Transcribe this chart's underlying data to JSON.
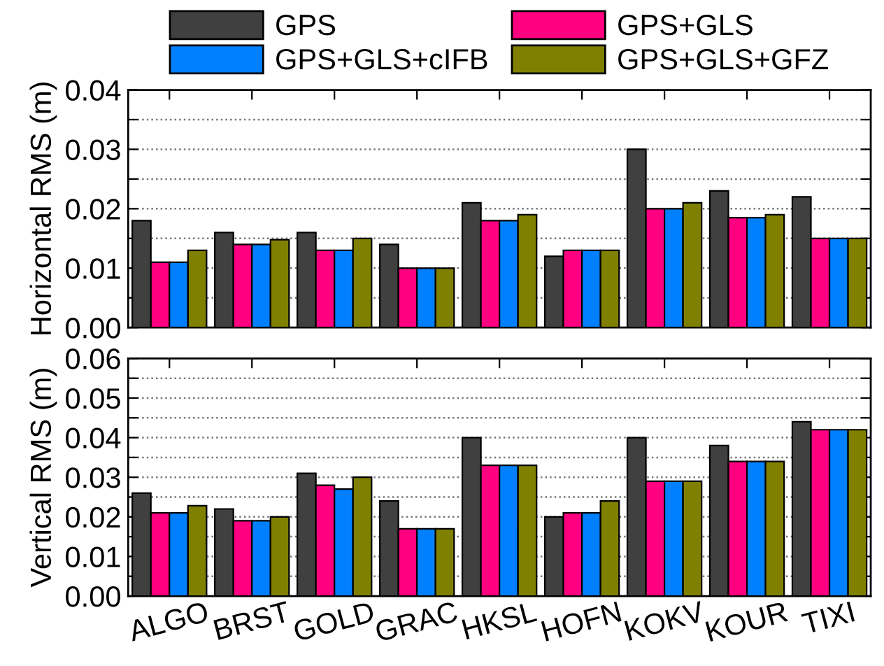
{
  "chart_data": [
    {
      "type": "bar",
      "ylabel": "Horizontal RMS (m)",
      "categories": [
        null,
        null,
        null,
        null,
        null,
        null,
        null,
        null,
        null
      ],
      "series": [
        {
          "name": "GPS",
          "color": "#404040",
          "values": [
            0.018,
            0.016,
            0.016,
            0.014,
            0.021,
            0.012,
            0.03,
            0.023,
            0.022
          ]
        },
        {
          "name": "GPS+GLS",
          "color": "#ff0080",
          "values": [
            0.011,
            0.014,
            0.013,
            0.01,
            0.018,
            0.013,
            0.02,
            0.0185,
            0.015
          ]
        },
        {
          "name": "GPS+GLS+cIFB",
          "color": "#0080ff",
          "values": [
            0.011,
            0.014,
            0.013,
            0.01,
            0.018,
            0.013,
            0.02,
            0.0185,
            0.015
          ]
        },
        {
          "name": "GPS+GLS+GFZ",
          "color": "#808000",
          "values": [
            0.013,
            0.0148,
            0.015,
            0.01,
            0.019,
            0.013,
            0.021,
            0.019,
            0.015
          ]
        }
      ],
      "ylim": [
        0,
        0.04
      ],
      "yticks": [
        {
          "value": 0,
          "label": "0.00"
        },
        {
          "value": 0.005,
          "label": null
        },
        {
          "value": 0.01,
          "label": "0.01"
        },
        {
          "value": 0.015,
          "label": null
        },
        {
          "value": 0.02,
          "label": "0.02"
        },
        {
          "value": 0.025,
          "label": null
        },
        {
          "value": 0.03,
          "label": "0.03"
        },
        {
          "value": 0.035,
          "label": null
        },
        {
          "value": 0.04,
          "label": "0.04"
        }
      ],
      "grid": "y",
      "legend": "top",
      "tick_labels": "y"
    },
    {
      "type": "bar",
      "ylabel": "Vertical RMS (m)",
      "categories": [
        "ALGO",
        "BRST",
        "GOLD",
        "GRAC",
        "HKSL",
        "HOFN",
        "KOKV",
        "KOUR",
        "TIXI"
      ],
      "series": [
        {
          "color": "#404040",
          "values": [
            0.026,
            0.022,
            0.031,
            0.024,
            0.04,
            0.02,
            0.04,
            0.038,
            0.044
          ]
        },
        {
          "color": "#ff0080",
          "values": [
            0.021,
            0.019,
            0.028,
            0.017,
            0.033,
            0.021,
            0.029,
            0.034,
            0.042
          ]
        },
        {
          "color": "#0080ff",
          "values": [
            0.021,
            0.019,
            0.027,
            0.017,
            0.033,
            0.021,
            0.029,
            0.034,
            0.042
          ]
        },
        {
          "color": "#808000",
          "values": [
            0.0228,
            0.02,
            0.03,
            0.017,
            0.033,
            0.024,
            0.029,
            0.034,
            0.042
          ]
        }
      ],
      "ylim": [
        0,
        0.06
      ],
      "yticks": [
        {
          "value": 0,
          "label": "0.00"
        },
        {
          "value": 0.005,
          "label": null
        },
        {
          "value": 0.01,
          "label": "0.01"
        },
        {
          "value": 0.015,
          "label": null
        },
        {
          "value": 0.02,
          "label": "0.02"
        },
        {
          "value": 0.025,
          "label": null
        },
        {
          "value": 0.03,
          "label": "0.03"
        },
        {
          "value": 0.035,
          "label": null
        },
        {
          "value": 0.04,
          "label": "0.04"
        },
        {
          "value": 0.045,
          "label": null
        },
        {
          "value": 0.05,
          "label": "0.05"
        },
        {
          "value": 0.055,
          "label": null
        },
        {
          "value": 0.06,
          "label": "0.06"
        }
      ],
      "grid": "y"
    }
  ]
}
